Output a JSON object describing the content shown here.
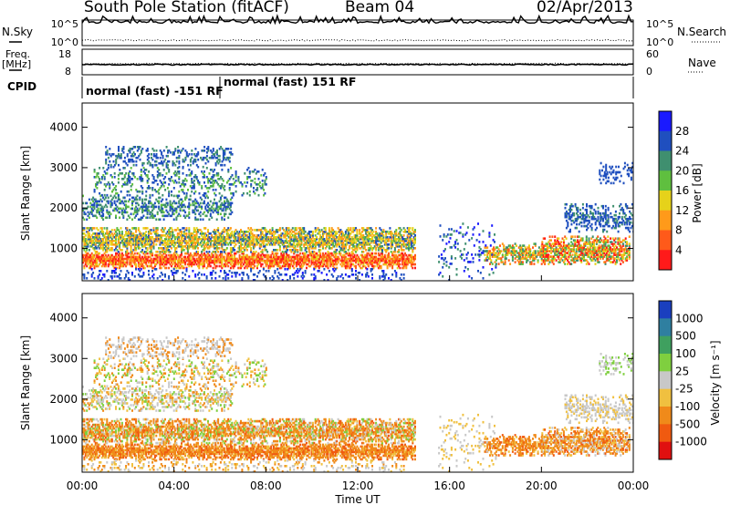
{
  "header": {
    "station": "South Pole Station (fitACF)",
    "beam": "Beam 04",
    "date": "02/Apr/2013"
  },
  "side_labels": {
    "nsky": "N.Sky",
    "freq": "Freq.",
    "freq_unit": "[MHz]",
    "cpid": "CPID",
    "nsearch": "N.Search",
    "nave": "Nave"
  },
  "chart_data": [
    {
      "type": "line",
      "panel": "noise",
      "left_ticks": [
        "10^5",
        "10^0"
      ],
      "right_ticks": [
        "10^5",
        "10^0"
      ],
      "series": [
        {
          "name": "N.Sky",
          "style": "solid",
          "level_fraction": 0.88
        },
        {
          "name": "N.Search",
          "style": "dotted",
          "level_fraction": 0.18
        }
      ]
    },
    {
      "type": "line",
      "panel": "frequency-nave",
      "left_ticks": [
        "18",
        "8"
      ],
      "right_ticks": [
        "60",
        "0"
      ],
      "series": [
        {
          "name": "Freq.",
          "style": "solid",
          "value_mhz": 12
        },
        {
          "name": "Nave",
          "style": "dotted",
          "value": 26
        }
      ]
    },
    {
      "type": "table",
      "panel": "cpid",
      "segments": [
        {
          "label": "normal (fast) -151 RF",
          "start": "00:00",
          "end": "06:00"
        },
        {
          "label": "normal (fast) 151 RF",
          "start": "06:00",
          "end": "24:00"
        }
      ]
    },
    {
      "type": "heatmap",
      "panel": "power",
      "xlabel": "Time UT",
      "ylabel": "Slant Range [km]",
      "xlim_hours": [
        0,
        24
      ],
      "ylim_km": [
        200,
        4600
      ],
      "y_ticks": [
        "1000",
        "2000",
        "3000",
        "4000"
      ],
      "colorbar_label": "Power [dB]",
      "colorbar_ticks": [
        "4",
        "8",
        "12",
        "16",
        "20",
        "24",
        "28"
      ],
      "colorbar_colors": [
        "#1a1aff",
        "#1f4fbf",
        "#3f8f6f",
        "#5fbf3f",
        "#e6d21a",
        "#ff9a1a",
        "#ff5a1a",
        "#ff1a1a"
      ]
    },
    {
      "type": "heatmap",
      "panel": "velocity",
      "xlabel": "Time UT",
      "ylabel": "Slant Range [km]",
      "xlim_hours": [
        0,
        24
      ],
      "ylim_km": [
        200,
        4600
      ],
      "y_ticks": [
        "1000",
        "2000",
        "3000",
        "4000"
      ],
      "x_ticks": [
        "00:00",
        "04:00",
        "08:00",
        "12:00",
        "16:00",
        "20:00",
        "00:00"
      ],
      "colorbar_label": "Velocity [m s⁻¹]",
      "colorbar_ticks": [
        "1000",
        "500",
        "100",
        "25",
        "-25",
        "-100",
        "-500",
        "-1000"
      ],
      "colorbar_colors": [
        "#1a3fbf",
        "#2f7fa0",
        "#3fa05f",
        "#7fcf3f",
        "#c8c8c8",
        "#f0c040",
        "#f08a1a",
        "#f05a10",
        "#e01010"
      ]
    }
  ]
}
